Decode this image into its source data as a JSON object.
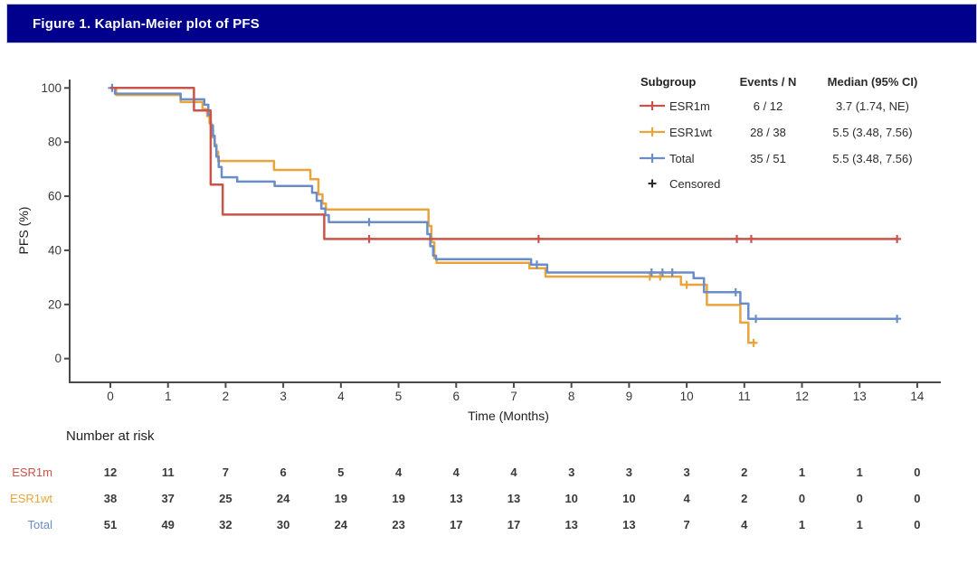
{
  "header": {
    "title": "Figure 1. Kaplan-Meier plot of PFS",
    "background": "#00008C"
  },
  "chart_data": {
    "type": "line",
    "subtype": "kaplan-meier-step",
    "title": "Figure 1. Kaplan-Meier plot of PFS",
    "xlabel": "Time (Months)",
    "ylabel": "PFS (%)",
    "xlim": [
      0,
      14
    ],
    "ylim": [
      0,
      100
    ],
    "xticks": [
      0,
      1,
      2,
      3,
      4,
      5,
      6,
      7,
      8,
      9,
      10,
      11,
      12,
      13,
      14
    ],
    "yticks": [
      0,
      20,
      40,
      60,
      80,
      100
    ],
    "grid": false,
    "legend_position": "top-right",
    "censor_marker": "+",
    "series": [
      {
        "name": "ESR1wt",
        "color": "#E9A43C",
        "events_n": "28 / 38",
        "median_ci": "5.5 (3.48, 7.56)",
        "steps": [
          [
            0,
            100
          ],
          [
            0.1,
            97.4
          ],
          [
            1.22,
            94.8
          ],
          [
            1.6,
            92.2
          ],
          [
            1.68,
            89.6
          ],
          [
            1.72,
            87
          ],
          [
            1.75,
            84.3
          ],
          [
            1.78,
            81.7
          ],
          [
            1.81,
            79.1
          ],
          [
            1.84,
            76.5
          ],
          [
            1.87,
            73
          ],
          [
            2.84,
            69.7
          ],
          [
            3.47,
            66.3
          ],
          [
            3.61,
            60.7
          ],
          [
            3.68,
            57.3
          ],
          [
            3.74,
            55.1
          ],
          [
            5.52,
            49
          ],
          [
            5.57,
            43
          ],
          [
            5.62,
            37
          ],
          [
            5.66,
            35.4
          ],
          [
            7.27,
            33.4
          ],
          [
            7.55,
            30.3
          ],
          [
            9.9,
            27.3
          ],
          [
            10.35,
            19.8
          ],
          [
            10.93,
            13.3
          ],
          [
            11.07,
            5.8
          ],
          [
            11.2,
            5.8
          ]
        ],
        "censors": [
          [
            9.36,
            30.3
          ],
          [
            9.54,
            30.3
          ],
          [
            10.0,
            27.3
          ],
          [
            11.16,
            5.8
          ]
        ]
      },
      {
        "name": "Total",
        "color": "#6A8DC8",
        "events_n": "35 / 51",
        "median_ci": "5.5 (3.48, 7.56)",
        "steps": [
          [
            0,
            100
          ],
          [
            0.08,
            97.9
          ],
          [
            1.22,
            95.8
          ],
          [
            1.63,
            93.8
          ],
          [
            1.7,
            90
          ],
          [
            1.74,
            86.2
          ],
          [
            1.78,
            82.3
          ],
          [
            1.81,
            78.5
          ],
          [
            1.84,
            74.6
          ],
          [
            1.88,
            70.8
          ],
          [
            1.93,
            67
          ],
          [
            2.2,
            65.4
          ],
          [
            2.85,
            63.8
          ],
          [
            3.5,
            61.3
          ],
          [
            3.58,
            58.3
          ],
          [
            3.66,
            55.4
          ],
          [
            3.73,
            53
          ],
          [
            3.79,
            50.4
          ],
          [
            5.5,
            46
          ],
          [
            5.55,
            41.5
          ],
          [
            5.6,
            38
          ],
          [
            5.65,
            36.7
          ],
          [
            7.3,
            34.7
          ],
          [
            7.58,
            31.8
          ],
          [
            10.12,
            29.7
          ],
          [
            10.3,
            24.5
          ],
          [
            10.93,
            20.3
          ],
          [
            11.07,
            14.7
          ],
          [
            13.65,
            14.7
          ]
        ],
        "censors": [
          [
            0.03,
            100
          ],
          [
            4.49,
            50.4
          ],
          [
            7.4,
            34.7
          ],
          [
            9.39,
            31.8
          ],
          [
            9.58,
            31.8
          ],
          [
            9.75,
            31.8
          ],
          [
            10.85,
            24.5
          ],
          [
            11.2,
            14.7
          ],
          [
            13.65,
            14.7
          ]
        ]
      },
      {
        "name": "ESR1m",
        "color": "#C9544A",
        "events_n": "6 / 12",
        "median_ci": "3.7 (1.74, NE)",
        "steps": [
          [
            0,
            100
          ],
          [
            1.45,
            91.7
          ],
          [
            1.74,
            64.3
          ],
          [
            1.95,
            53.2
          ],
          [
            3.71,
            44.2
          ],
          [
            13.65,
            44.2
          ]
        ],
        "censors": [
          [
            4.49,
            44.2
          ],
          [
            7.43,
            44.2
          ],
          [
            10.87,
            44.2
          ],
          [
            11.12,
            44.2
          ],
          [
            13.65,
            44.2
          ]
        ]
      }
    ]
  },
  "legend": {
    "headers": {
      "subgroup": "Subgroup",
      "events": "Events / N",
      "median": "Median (95% CI)"
    },
    "censored_label": "Censored",
    "censored_color": "#2b2b2b"
  },
  "risk_table": {
    "title": "Number at risk",
    "months": [
      0,
      1,
      2,
      3,
      4,
      5,
      6,
      7,
      8,
      9,
      10,
      11,
      12,
      13,
      14
    ],
    "rows": [
      {
        "label": "ESR1m",
        "color": "#C9544A",
        "values": [
          12,
          11,
          7,
          6,
          5,
          4,
          4,
          4,
          3,
          3,
          3,
          2,
          1,
          1,
          0
        ]
      },
      {
        "label": "ESR1wt",
        "color": "#E9A43C",
        "values": [
          38,
          37,
          25,
          24,
          19,
          19,
          13,
          13,
          10,
          10,
          4,
          2,
          0,
          0,
          0
        ]
      },
      {
        "label": "Total",
        "color": "#6A8DC8",
        "values": [
          51,
          49,
          32,
          30,
          24,
          23,
          17,
          17,
          13,
          13,
          7,
          4,
          1,
          1,
          0
        ]
      }
    ]
  }
}
